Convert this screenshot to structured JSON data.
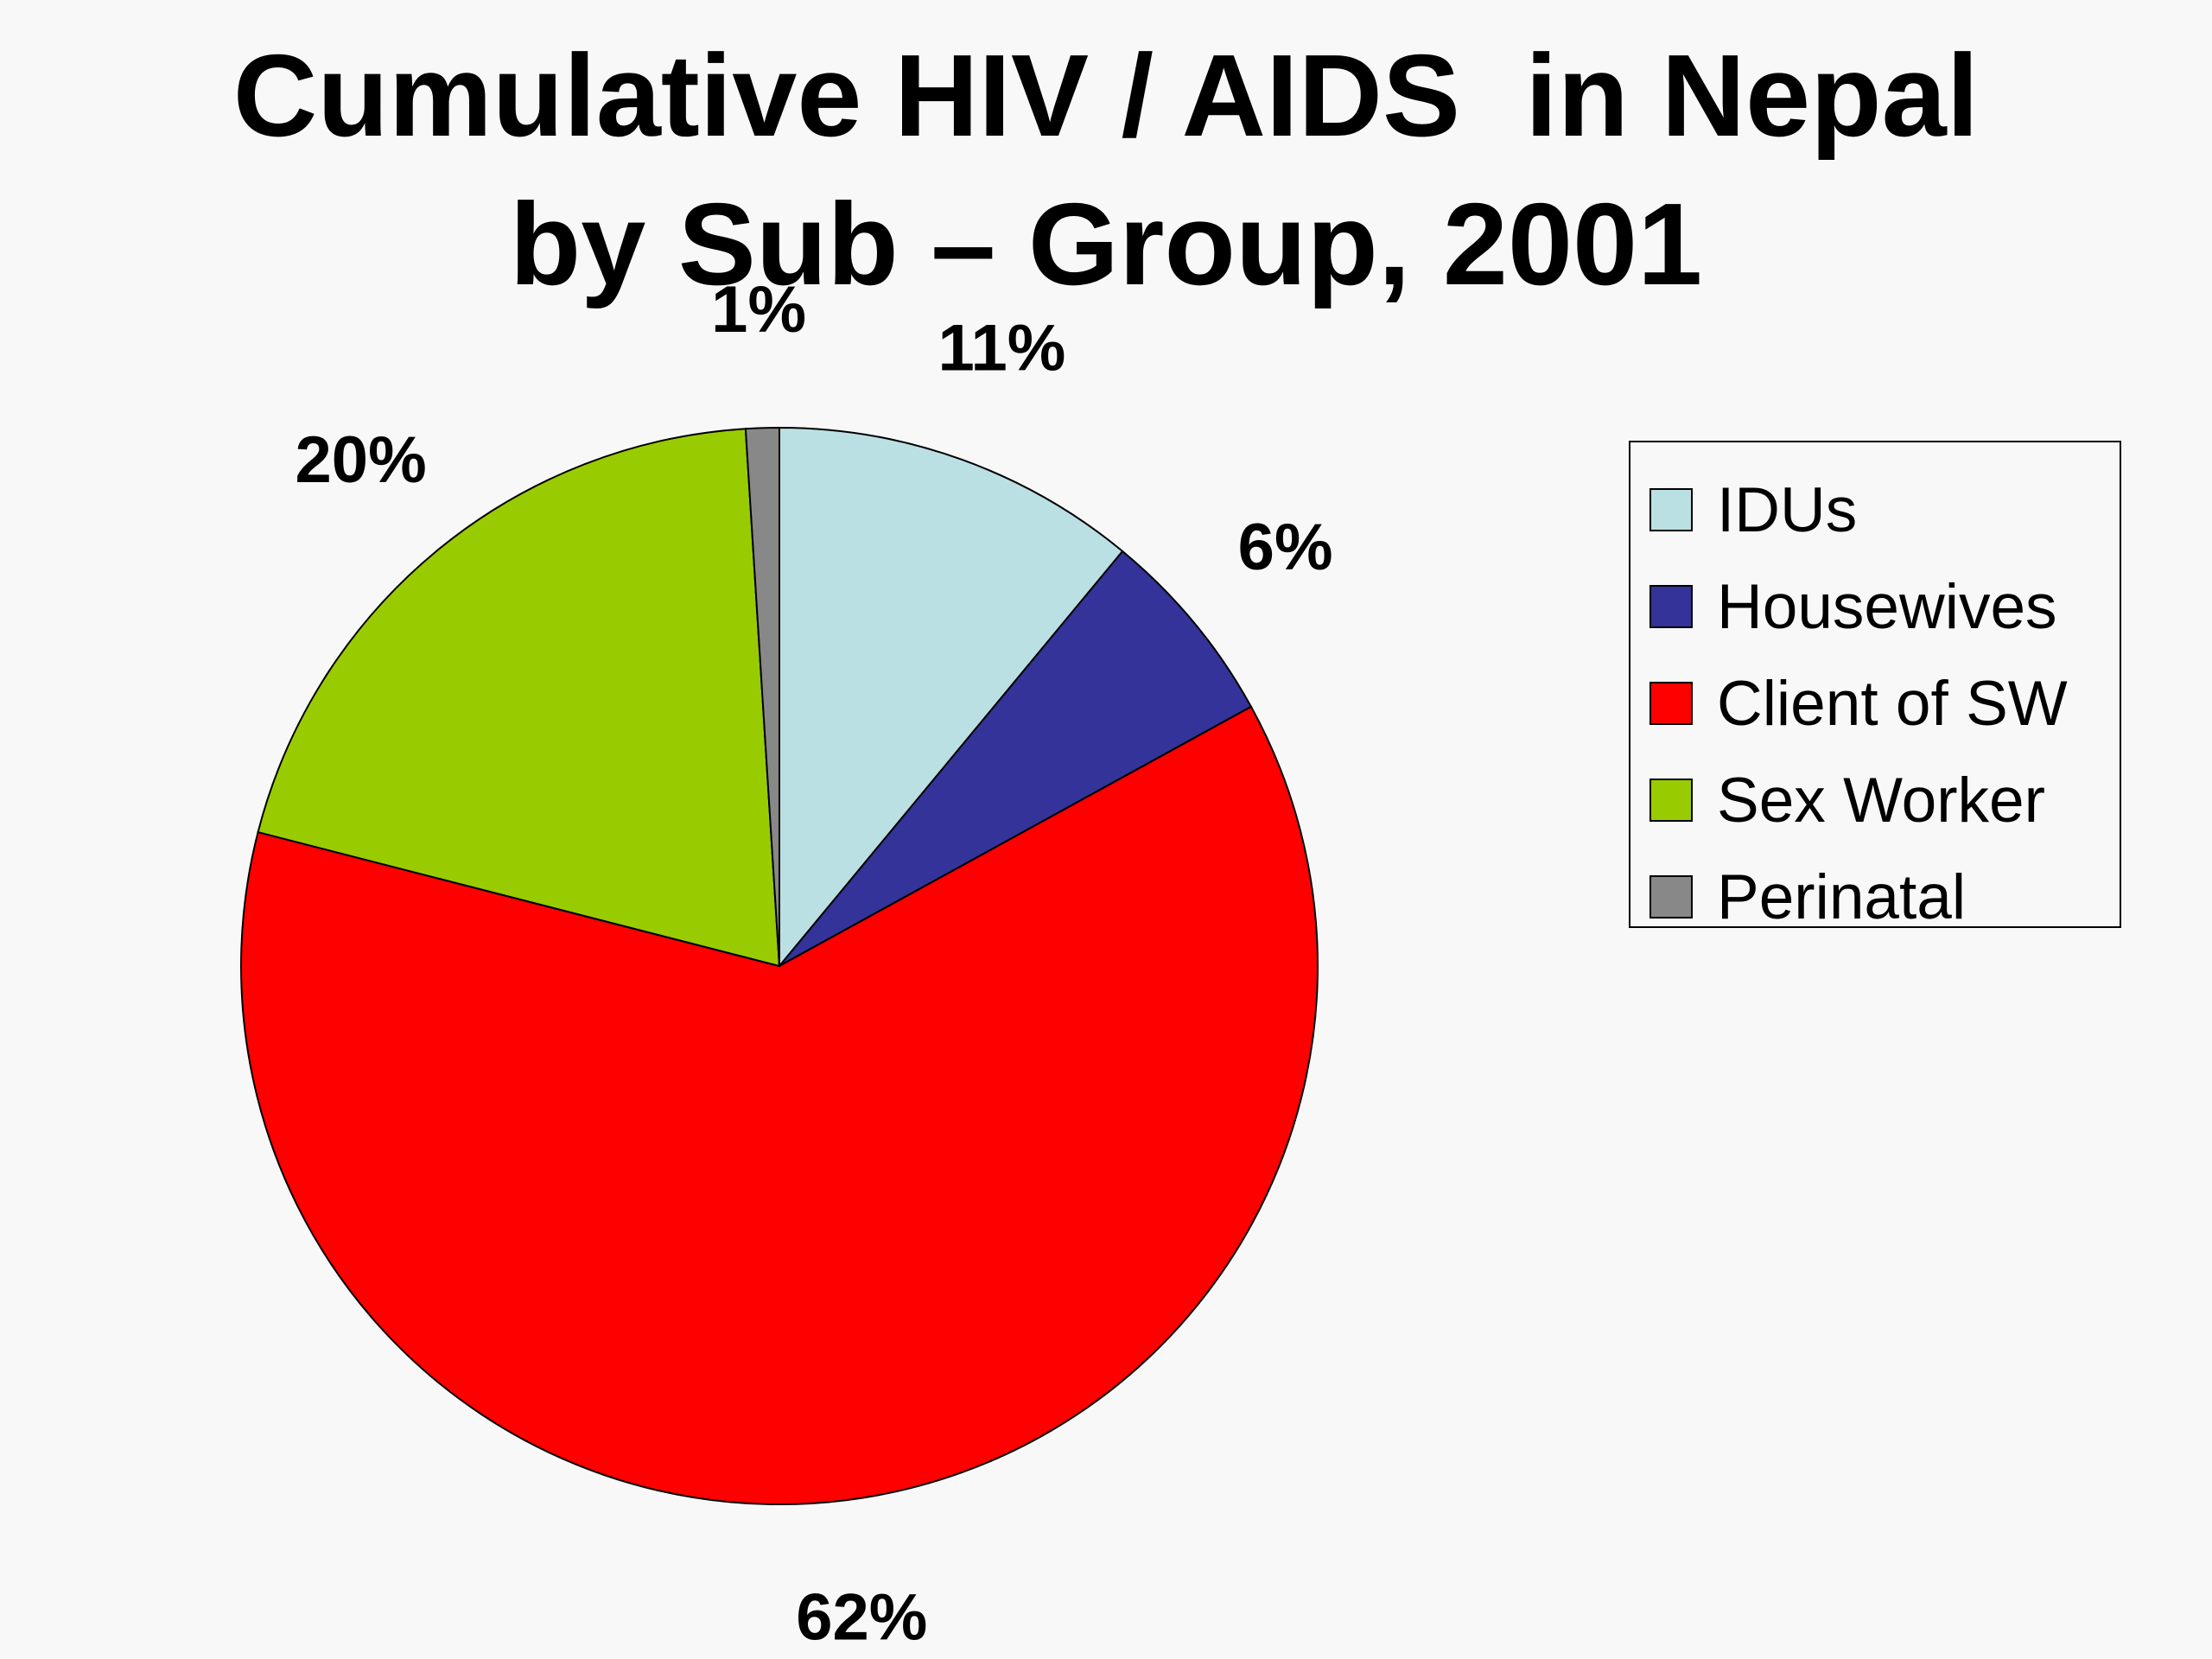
{
  "chart_data": {
    "type": "pie",
    "title_lines": [
      "Cumulative HIV / AIDS  in Nepal",
      "by Sub – Group, 2001"
    ],
    "labels": [
      "IDUs",
      "Housewives",
      "Client of SW",
      "Sex Worker",
      "Perinatal"
    ],
    "values": [
      11,
      6,
      62,
      20,
      1
    ],
    "value_labels": [
      "11%",
      "6%",
      "62%",
      "20%",
      "1%"
    ],
    "colors": [
      "#bbe0e3",
      "#333399",
      "#ff0000",
      "#99cc00",
      "#888888"
    ],
    "start_angle": "12 o'clock",
    "direction": "clockwise",
    "legend_position": "right"
  }
}
